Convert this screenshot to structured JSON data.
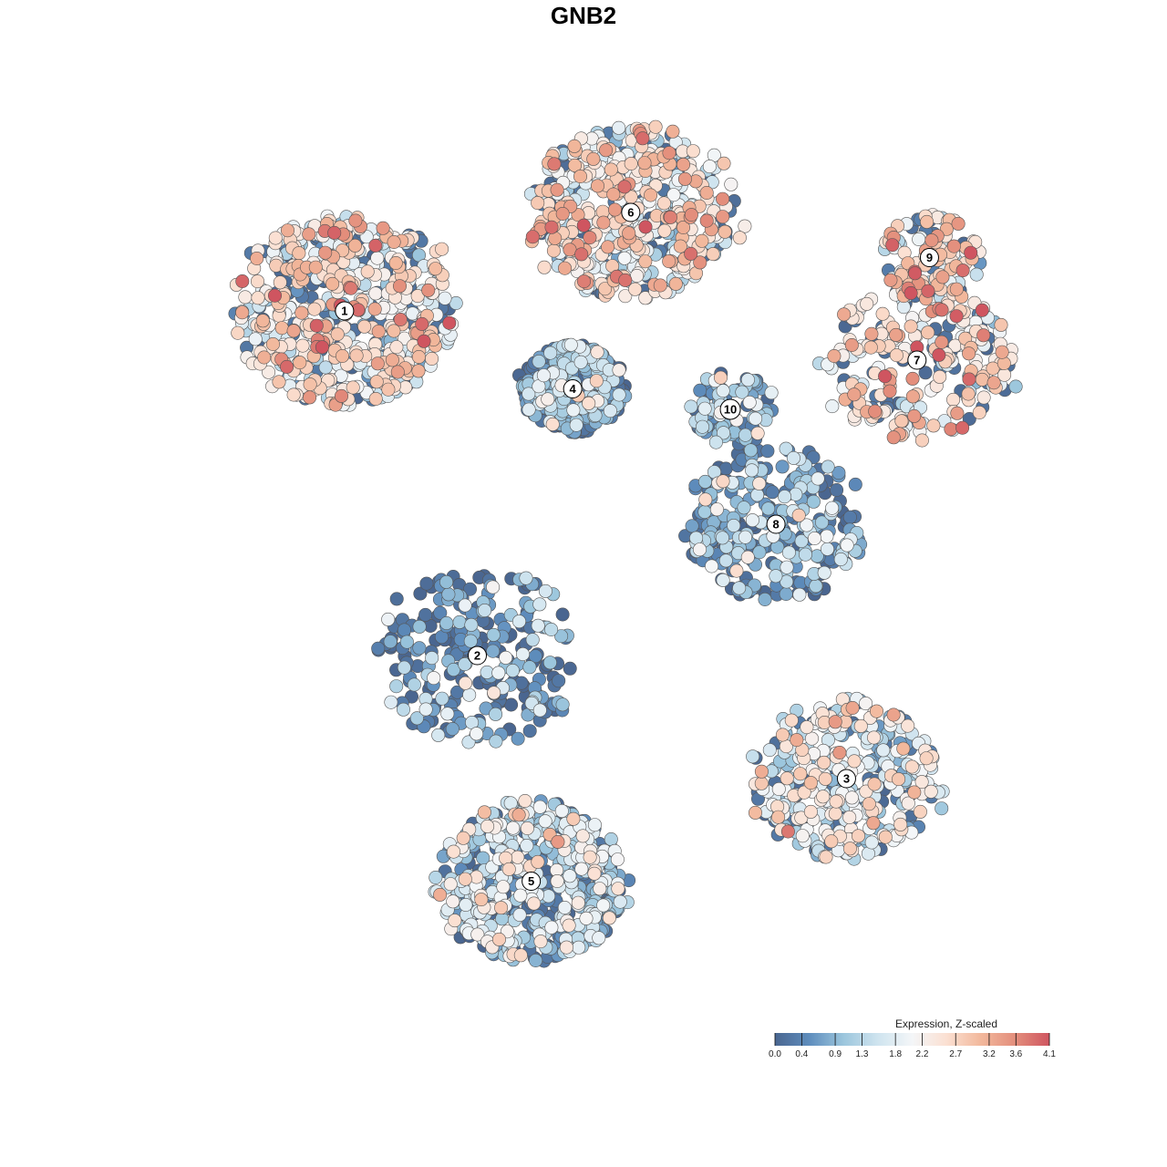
{
  "chart_data": {
    "type": "scatter",
    "title": "GNB2",
    "xlabel": "",
    "ylabel": "",
    "grid": false,
    "legend_position": "bottom-right",
    "colorbar": {
      "title": "Expression, Z-scaled",
      "min": 0.0,
      "max": 4.1,
      "ticks": [
        0.0,
        0.4,
        0.9,
        1.3,
        1.8,
        2.2,
        2.7,
        3.2,
        3.6,
        4.1
      ],
      "tick_labels": [
        "0.0",
        "0.4",
        "0.9",
        "1.3",
        "1.8",
        "2.2",
        "2.7",
        "3.2",
        "3.6",
        "4.1"
      ],
      "colors": [
        "#4a6690",
        "#5e8dbd",
        "#9cc6dd",
        "#cfe4ef",
        "#f4f6f8",
        "#fbe0d2",
        "#f2b89c",
        "#e38e7c",
        "#cf5560"
      ]
    },
    "clusters": [
      {
        "label": "1",
        "x": -0.62,
        "y": 0.62,
        "n": 620,
        "mean": 2.2,
        "spread": 0.26
      },
      {
        "label": "2",
        "x": -0.3,
        "y": -0.22,
        "n": 260,
        "mean": 0.6,
        "spread": 0.24
      },
      {
        "label": "3",
        "x": 0.59,
        "y": -0.52,
        "n": 380,
        "mean": 1.8,
        "spread": 0.22
      },
      {
        "label": "4",
        "x": -0.07,
        "y": 0.43,
        "n": 420,
        "mean": 0.5,
        "spread": 0.12
      },
      {
        "label": "5",
        "x": -0.17,
        "y": -0.77,
        "n": 560,
        "mean": 1.3,
        "spread": 0.22
      },
      {
        "label": "6",
        "x": 0.07,
        "y": 0.86,
        "n": 520,
        "mean": 2.3,
        "spread": 0.24
      },
      {
        "label": "7",
        "x": 0.76,
        "y": 0.5,
        "n": 260,
        "mean": 2.5,
        "spread": 0.22
      },
      {
        "label": "8",
        "x": 0.42,
        "y": 0.1,
        "n": 300,
        "mean": 0.8,
        "spread": 0.21
      },
      {
        "label": "9",
        "x": 0.79,
        "y": 0.75,
        "n": 120,
        "mean": 2.5,
        "spread": 0.12
      },
      {
        "label": "10",
        "x": 0.31,
        "y": 0.38,
        "n": 100,
        "mean": 0.8,
        "spread": 0.1
      }
    ]
  }
}
